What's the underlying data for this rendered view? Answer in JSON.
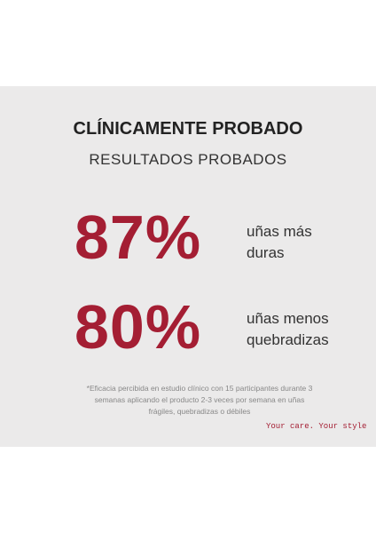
{
  "header": {
    "title": "CLÍNICAMENTE PROBADO",
    "subtitle": "RESULTADOS PROBADOS"
  },
  "stats": [
    {
      "value": "87%",
      "label": [
        "uñas más",
        "duras"
      ]
    },
    {
      "value": "80%",
      "label": [
        "uñas menos",
        "quebradizas"
      ]
    }
  ],
  "footnote": [
    "*Eficacia percibida en estudio clínico con 15 participantes durante 3",
    "semanas aplicando el producto 2-3 veces por semana en uñas",
    "frágiles, quebradizas o débiles"
  ],
  "tagline": "Your care. Your style"
}
